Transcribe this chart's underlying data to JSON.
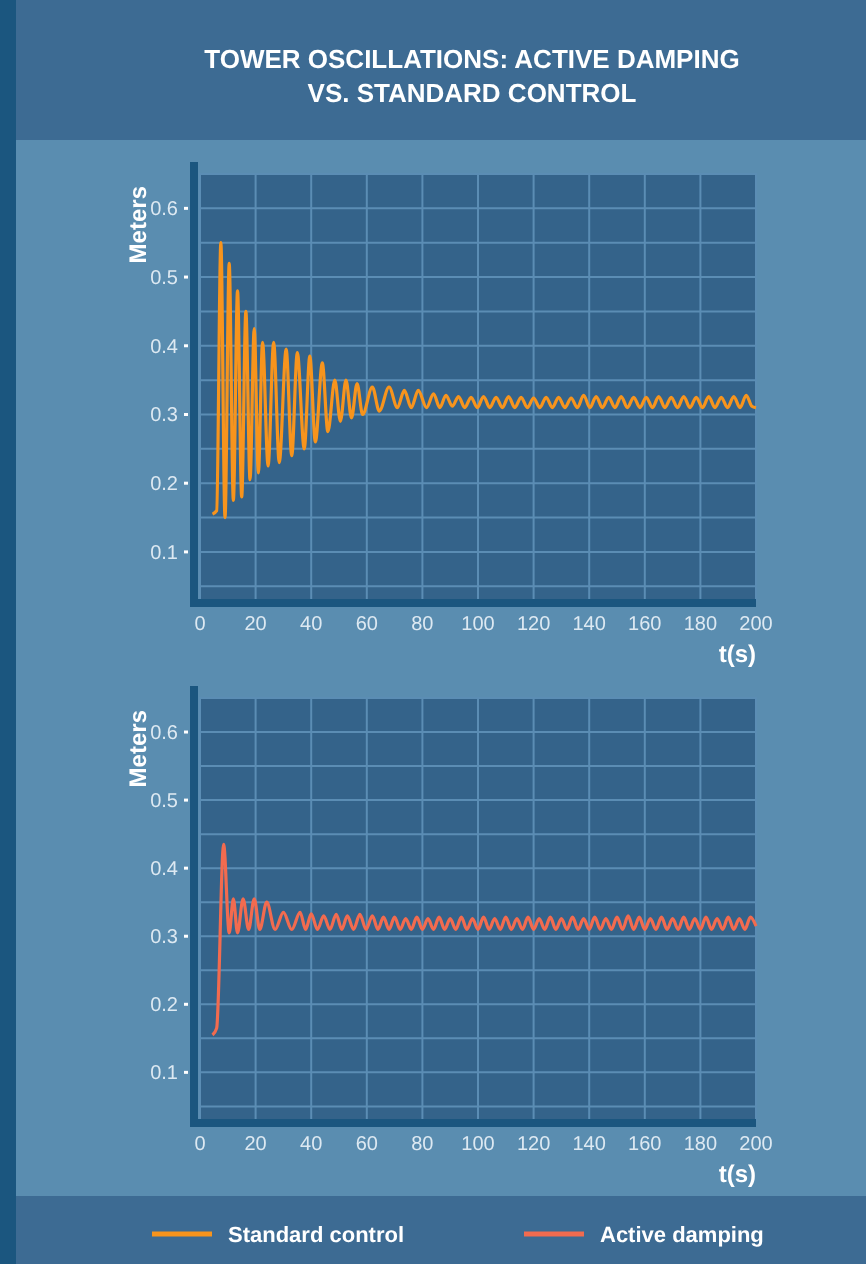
{
  "chart_data": [
    {
      "type": "line",
      "title": "TOWER OSCILLATIONS: ACTIVE DAMPING VS. STANDARD CONTROL",
      "xlabel": "t(s)",
      "ylabel": "Meters",
      "xlim": [
        0,
        200
      ],
      "ylim": [
        0.03,
        0.65
      ],
      "xticks": [
        0,
        20,
        40,
        60,
        80,
        100,
        120,
        140,
        160,
        180,
        200
      ],
      "yticks": [
        {
          "value": 0.05,
          "label": null
        },
        0.1,
        {
          "value": 0.15,
          "label": null
        },
        0.2,
        {
          "value": 0.25,
          "label": null
        },
        0.3,
        {
          "value": 0.35,
          "label": null
        },
        0.4,
        {
          "value": 0.45,
          "label": null
        },
        0.5,
        {
          "value": 0.55,
          "label": null
        },
        0.6
      ],
      "grid": true,
      "legend": "bottom",
      "series": [
        {
          "name": "Standard control",
          "color": "#f7941d",
          "x": [
            4.5,
            6,
            7.5,
            9,
            10.5,
            12,
            13.5,
            15,
            16.5,
            18,
            19.5,
            21,
            22.5,
            24.5,
            26.5,
            28.5,
            31,
            33,
            35,
            37.5,
            39.5,
            41.5,
            44,
            46,
            48.5,
            50.5,
            52.5,
            54.5,
            56.5,
            58.5,
            62,
            64.5,
            68,
            71,
            73.5,
            76,
            78.5,
            81.5,
            84,
            86.25,
            88.5,
            90.75,
            93,
            95.25,
            97.5,
            99.75,
            102,
            104.25,
            106.5,
            108.75,
            111,
            113.25,
            115.5,
            117.75,
            120,
            122.25,
            124.5,
            126.75,
            129,
            131.25,
            133.5,
            135.75,
            138,
            140.25,
            142.5,
            144.75,
            147,
            149.25,
            151.5,
            153.75,
            156,
            158.25,
            160.5,
            162.75,
            165,
            167.25,
            169.5,
            171.75,
            174,
            176.25,
            178.5,
            180.75,
            183,
            185.25,
            187.5,
            189.75,
            192,
            194.25,
            196.5,
            198.5,
            200
          ],
          "values": [
            0.155,
            0.16,
            0.55,
            0.15,
            0.52,
            0.175,
            0.48,
            0.18,
            0.45,
            0.205,
            0.425,
            0.215,
            0.405,
            0.225,
            0.405,
            0.23,
            0.395,
            0.24,
            0.39,
            0.25,
            0.385,
            0.26,
            0.375,
            0.275,
            0.35,
            0.29,
            0.35,
            0.295,
            0.345,
            0.3,
            0.34,
            0.305,
            0.34,
            0.31,
            0.335,
            0.31,
            0.335,
            0.31,
            0.33,
            0.31,
            0.328,
            0.312,
            0.326,
            0.31,
            0.325,
            0.31,
            0.326,
            0.31,
            0.325,
            0.31,
            0.326,
            0.31,
            0.325,
            0.31,
            0.324,
            0.31,
            0.325,
            0.31,
            0.325,
            0.31,
            0.324,
            0.31,
            0.328,
            0.31,
            0.326,
            0.31,
            0.325,
            0.31,
            0.326,
            0.31,
            0.325,
            0.31,
            0.325,
            0.31,
            0.326,
            0.31,
            0.325,
            0.31,
            0.326,
            0.31,
            0.325,
            0.31,
            0.326,
            0.31,
            0.325,
            0.31,
            0.326,
            0.31,
            0.328,
            0.312,
            0.31
          ]
        }
      ]
    },
    {
      "type": "line",
      "xlabel": "t(s)",
      "ylabel": "Meters",
      "xlim": [
        0,
        200
      ],
      "ylim": [
        0.03,
        0.65
      ],
      "xticks": [
        0,
        20,
        40,
        60,
        80,
        100,
        120,
        140,
        160,
        180,
        200
      ],
      "yticks": [
        {
          "value": 0.05,
          "label": null
        },
        0.1,
        {
          "value": 0.15,
          "label": null
        },
        0.2,
        {
          "value": 0.25,
          "label": null
        },
        0.3,
        {
          "value": 0.35,
          "label": null
        },
        0.4,
        {
          "value": 0.45,
          "label": null
        },
        0.5,
        {
          "value": 0.55,
          "label": null
        },
        0.6
      ],
      "grid": true,
      "legend": "bottom",
      "series": [
        {
          "name": "Active damping",
          "color": "#f26b4f",
          "x": [
            4.5,
            6,
            8.5,
            10.5,
            12,
            13.5,
            15.5,
            17.5,
            19.5,
            21.5,
            24,
            27,
            30,
            33,
            36,
            38,
            40,
            42.25,
            44.5,
            46.75,
            49,
            51,
            53,
            55.25,
            57.5,
            59.75,
            62,
            64,
            66,
            68,
            70,
            72,
            74,
            76,
            78,
            80,
            82,
            84,
            86,
            88,
            90,
            92,
            94,
            96,
            98,
            100,
            102,
            104,
            106,
            108,
            110,
            112,
            114,
            116,
            118,
            120,
            122,
            124,
            126,
            128,
            130,
            132,
            134,
            136,
            138,
            140,
            142,
            144,
            146,
            148,
            150,
            152,
            154,
            156,
            158,
            160,
            162,
            164,
            166,
            168,
            170,
            172,
            174,
            176,
            178,
            180,
            182,
            184,
            186,
            188,
            190,
            192,
            194,
            196,
            198,
            200
          ],
          "values": [
            0.155,
            0.165,
            0.435,
            0.305,
            0.355,
            0.305,
            0.355,
            0.31,
            0.355,
            0.31,
            0.35,
            0.31,
            0.335,
            0.31,
            0.335,
            0.31,
            0.333,
            0.31,
            0.33,
            0.31,
            0.332,
            0.31,
            0.33,
            0.31,
            0.332,
            0.31,
            0.33,
            0.31,
            0.328,
            0.31,
            0.328,
            0.31,
            0.326,
            0.31,
            0.328,
            0.31,
            0.326,
            0.31,
            0.328,
            0.31,
            0.326,
            0.31,
            0.328,
            0.31,
            0.326,
            0.31,
            0.328,
            0.31,
            0.326,
            0.31,
            0.328,
            0.31,
            0.326,
            0.31,
            0.328,
            0.31,
            0.326,
            0.31,
            0.328,
            0.31,
            0.326,
            0.31,
            0.328,
            0.31,
            0.326,
            0.31,
            0.328,
            0.31,
            0.326,
            0.31,
            0.328,
            0.31,
            0.33,
            0.31,
            0.328,
            0.31,
            0.326,
            0.31,
            0.328,
            0.31,
            0.326,
            0.31,
            0.328,
            0.31,
            0.326,
            0.31,
            0.328,
            0.31,
            0.326,
            0.31,
            0.328,
            0.31,
            0.326,
            0.31,
            0.328,
            0.315
          ]
        }
      ]
    }
  ]
}
